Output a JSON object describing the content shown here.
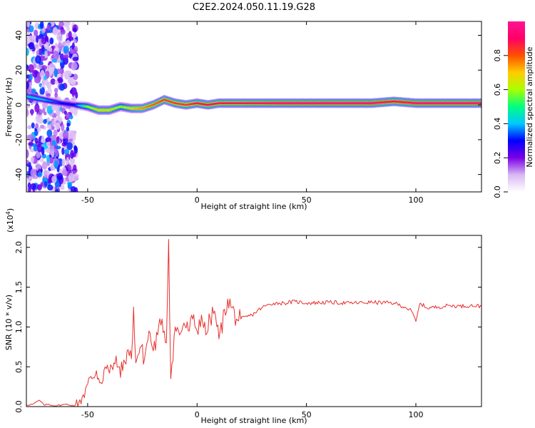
{
  "chart_data": [
    {
      "type": "heatmap",
      "title": "C2E2.2024.050.11.19.G28",
      "xlabel": "Height of straight line (km)",
      "ylabel": "Frequency (Hz)",
      "xlim": [
        -78,
        130
      ],
      "ylim": [
        -50,
        48
      ],
      "xticks": [
        -50,
        0,
        50,
        100
      ],
      "yticks": [
        -40,
        -20,
        0,
        20,
        40
      ],
      "colorbar": {
        "label": "Normalized spectral amplitude",
        "range": [
          0,
          1
        ],
        "ticks": [
          "0.0",
          "0.2",
          "0.4",
          "0.6",
          "0.8"
        ],
        "colors": [
          "#ffffff",
          "#d8b8f4",
          "#7a00e6",
          "#0000ff",
          "#00c8ff",
          "#00ff80",
          "#aaff00",
          "#ffcc00",
          "#ff5000",
          "#ff0066",
          "#ff1493"
        ]
      },
      "ridge": {
        "x": [
          -78,
          -70,
          -62,
          -56,
          -50,
          -45,
          -40,
          -35,
          -30,
          -25,
          -20,
          -15,
          -10,
          -5,
          0,
          5,
          10,
          20,
          30,
          40,
          50,
          60,
          70,
          80,
          90,
          100,
          110,
          120,
          130
        ],
        "frequency": [
          5,
          3,
          1,
          0,
          -1,
          -3,
          -3,
          -1,
          -2,
          -2,
          0,
          3,
          1,
          0,
          1,
          0,
          1,
          1,
          1,
          1,
          1,
          1,
          1,
          1,
          2,
          1,
          1,
          1,
          1
        ],
        "amplitude": [
          0.45,
          0.4,
          0.3,
          0.3,
          0.6,
          0.7,
          0.7,
          0.6,
          0.7,
          0.75,
          0.8,
          0.85,
          0.85,
          0.85,
          0.9,
          0.9,
          0.9,
          0.9,
          0.92,
          0.95,
          0.95,
          0.95,
          0.95,
          0.95,
          0.9,
          0.95,
          0.95,
          0.95,
          0.95
        ]
      }
    },
    {
      "type": "line",
      "title": "",
      "xlabel": "Height of straight line (km)",
      "ylabel": "SNR (10 * v/v)",
      "multiplier": "(x10",
      "multiplier_exp": "4",
      "multiplier_close": ")",
      "xlim": [
        -78,
        130
      ],
      "ylim": [
        0,
        2.15
      ],
      "xticks": [
        -50,
        0,
        50,
        100
      ],
      "yticks": [
        "0.0",
        "0.5",
        "1.0",
        "1.5",
        "2.0"
      ],
      "color": "#e8302e",
      "series": [
        {
          "x": [
            -78,
            -75,
            -72,
            -70,
            -68,
            -65,
            -62,
            -60,
            -58,
            -56,
            -54,
            -52,
            -50,
            -48,
            -46,
            -44,
            -42,
            -40,
            -38,
            -36,
            -34,
            -32,
            -30,
            -29,
            -28,
            -26,
            -24,
            -22,
            -20,
            -18,
            -16,
            -14,
            -13,
            -12,
            -10,
            -8,
            -6,
            -4,
            -2,
            0,
            2,
            4,
            6,
            8,
            10,
            14,
            18,
            20,
            25,
            30,
            35,
            40,
            45,
            50,
            60,
            70,
            80,
            90,
            95,
            98,
            100,
            102,
            105,
            110,
            115,
            120,
            125,
            130
          ],
          "y": [
            0.02,
            0.03,
            0.08,
            0.02,
            0.03,
            0.01,
            0.02,
            0.03,
            0.02,
            0.01,
            0.05,
            0.15,
            0.28,
            0.35,
            0.45,
            0.3,
            0.5,
            0.42,
            0.55,
            0.5,
            0.45,
            0.7,
            0.6,
            1.25,
            0.55,
            0.75,
            0.6,
            0.95,
            0.7,
            0.9,
            1.1,
            0.8,
            2.1,
            0.35,
            1.0,
            0.9,
            1.05,
            0.95,
            1.1,
            0.95,
            1.15,
            0.9,
            1.1,
            1.2,
            0.85,
            1.35,
            1.1,
            1.1,
            1.15,
            1.25,
            1.3,
            1.3,
            1.32,
            1.3,
            1.31,
            1.3,
            1.31,
            1.3,
            1.25,
            1.2,
            1.07,
            1.3,
            1.24,
            1.25,
            1.27,
            1.26,
            1.27,
            1.26
          ]
        }
      ]
    }
  ]
}
